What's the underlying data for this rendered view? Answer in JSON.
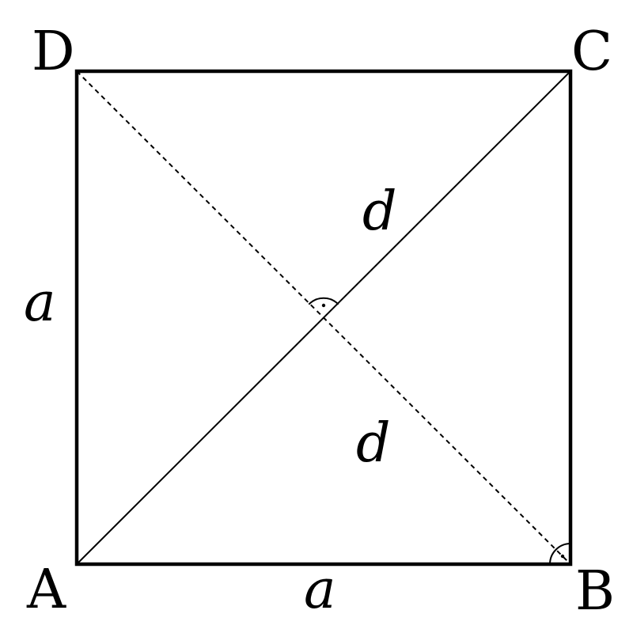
{
  "vertices": {
    "A": "A",
    "B": "B",
    "C": "C",
    "D": "D"
  },
  "labels": {
    "side_left": "a",
    "side_bottom": "a",
    "diagonal_upper": "d",
    "diagonal_lower": "d"
  }
}
